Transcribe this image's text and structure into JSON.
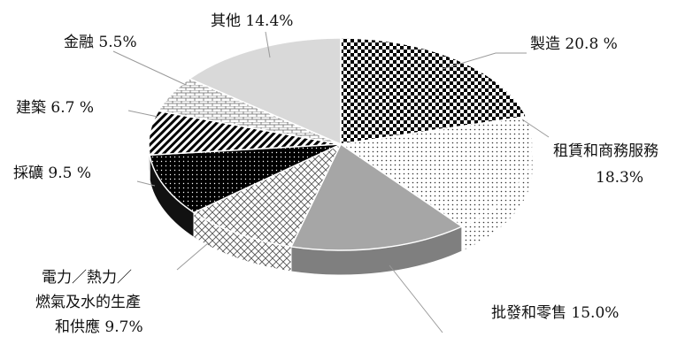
{
  "chart_data": {
    "type": "pie",
    "title": "",
    "slices": [
      {
        "label": "製造",
        "value": 20.8,
        "value_text": "20.8 %",
        "pattern": "checker"
      },
      {
        "label": "租賃和商務服務",
        "value": 18.3,
        "value_text": "18.3%",
        "pattern": "dots"
      },
      {
        "label": "批發和零售",
        "value": 15.0,
        "value_text": "15.0%",
        "pattern": "solid-gray"
      },
      {
        "label": "電力／熱力／燃氣及水的生產和供應",
        "value": 9.7,
        "value_text": "9.7%",
        "pattern": "crosshatch"
      },
      {
        "label": "採礦",
        "value": 9.5,
        "value_text": "9.5 %",
        "pattern": "black-dots"
      },
      {
        "label": "建築",
        "value": 6.7,
        "value_text": "6.7 %",
        "pattern": "diagonal-stripes"
      },
      {
        "label": "金融",
        "value": 5.5,
        "value_text": "5.5%",
        "pattern": "brick"
      },
      {
        "label": "其他",
        "value": 14.4,
        "value_text": "14.4%",
        "pattern": "solid-lightgray"
      }
    ],
    "legend": "none",
    "style": "3d-exploded-pie"
  },
  "labels": {
    "manufacturing": "製造 20.8 %",
    "leasing_line1": "租賃和商務服務",
    "leasing_line2": "18.3%",
    "wholesale": "批發和零售 15.0%",
    "utilities_line1": "電力／熱力／",
    "utilities_line2": "燃氣及水的生產",
    "utilities_line3": "和供應 9.7%",
    "mining": "採礦 9.5 %",
    "construction": "建築 6.7 %",
    "finance": "金融 5.5%",
    "other": "其他 14.4%"
  }
}
